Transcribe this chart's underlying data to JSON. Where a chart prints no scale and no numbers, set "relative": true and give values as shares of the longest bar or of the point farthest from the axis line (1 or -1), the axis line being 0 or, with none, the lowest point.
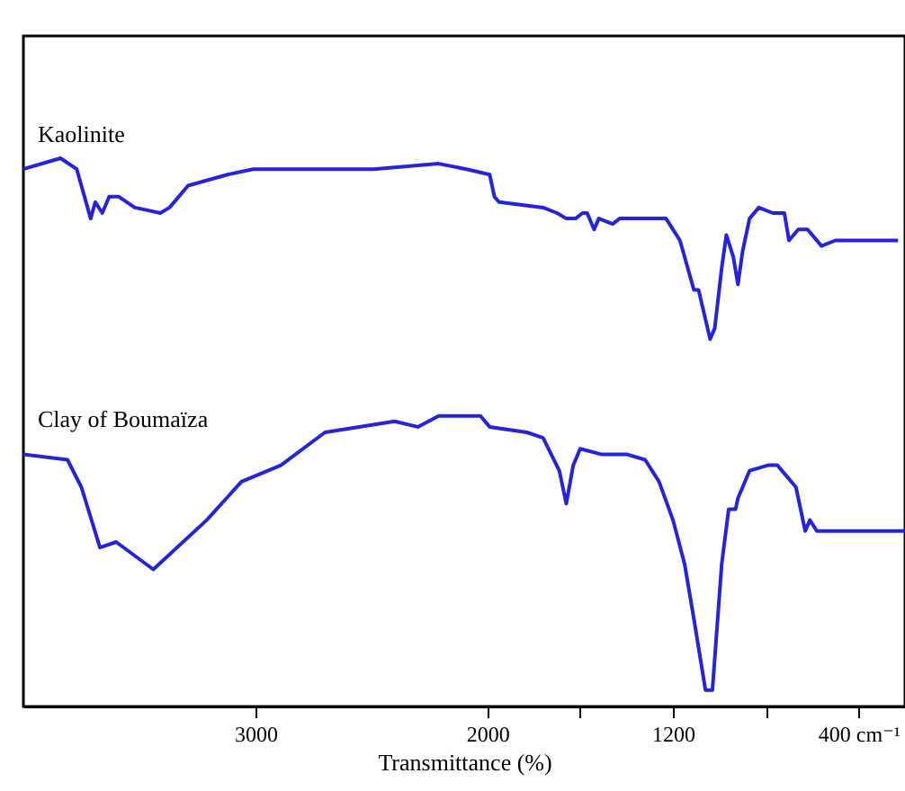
{
  "chart_data": {
    "type": "line",
    "relative": true,
    "xlabel": "Transmittance (%)",
    "xlim": [
      4000,
      200
    ],
    "xticks": [
      3000,
      2000,
      {
        "value": 1600,
        "label": null
      },
      1200,
      {
        "value": 800,
        "label": null
      },
      {
        "value": 400,
        "label": "400 cm⁻¹"
      }
    ],
    "series": [
      {
        "name": "Kaolinite",
        "color": "#2424d8",
        "x": [
          4000,
          3840,
          3770,
          3710,
          3690,
          3660,
          3630,
          3590,
          3520,
          3410,
          3370,
          3290,
          3120,
          3010,
          2720,
          2490,
          2210,
          2090,
          1990,
          1970,
          1950,
          1760,
          1700,
          1660,
          1650,
          1620,
          1590,
          1570,
          1540,
          1520,
          1460,
          1430,
          1230,
          1170,
          1110,
          1090,
          1040,
          1020,
          990,
          970,
          940,
          920,
          900,
          870,
          830,
          770,
          720,
          700,
          660,
          620,
          560,
          500,
          230
        ],
        "values": [
          0.98,
          1.0,
          0.98,
          0.89,
          0.92,
          0.9,
          0.93,
          0.93,
          0.91,
          0.9,
          0.91,
          0.95,
          0.97,
          0.98,
          0.98,
          0.98,
          0.99,
          0.98,
          0.97,
          0.93,
          0.92,
          0.91,
          0.9,
          0.89,
          0.89,
          0.89,
          0.9,
          0.9,
          0.87,
          0.89,
          0.88,
          0.89,
          0.89,
          0.85,
          0.76,
          0.76,
          0.67,
          0.69,
          0.8,
          0.86,
          0.82,
          0.77,
          0.83,
          0.89,
          0.91,
          0.9,
          0.9,
          0.85,
          0.87,
          0.87,
          0.84,
          0.85,
          0.85
        ]
      },
      {
        "name": "Clay of Boumaïza",
        "color": "#2424d8",
        "x": [
          4000,
          3810,
          3750,
          3670,
          3600,
          3440,
          3210,
          3060,
          2890,
          2700,
          2400,
          2300,
          2210,
          2030,
          1990,
          1830,
          1760,
          1690,
          1660,
          1630,
          1600,
          1510,
          1400,
          1320,
          1260,
          1200,
          1150,
          1110,
          1060,
          1030,
          990,
          960,
          930,
          920,
          870,
          790,
          750,
          670,
          630,
          610,
          580,
          200
        ],
        "values": [
          0.46,
          0.45,
          0.4,
          0.29,
          0.3,
          0.25,
          0.34,
          0.41,
          0.44,
          0.5,
          0.52,
          0.51,
          0.53,
          0.53,
          0.51,
          0.5,
          0.49,
          0.43,
          0.37,
          0.44,
          0.47,
          0.46,
          0.46,
          0.45,
          0.41,
          0.34,
          0.26,
          0.16,
          0.03,
          0.03,
          0.26,
          0.36,
          0.36,
          0.38,
          0.43,
          0.44,
          0.44,
          0.4,
          0.32,
          0.34,
          0.32,
          0.32
        ]
      }
    ]
  }
}
